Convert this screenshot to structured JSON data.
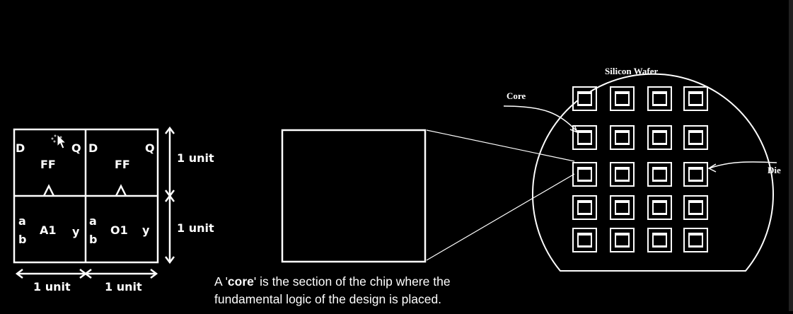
{
  "cell_grid": {
    "top_left": {
      "d": "D",
      "q": "Q",
      "name": "FF"
    },
    "top_right": {
      "d": "D",
      "q": "Q",
      "name": "FF"
    },
    "bottom_left": {
      "a": "a",
      "b": "b",
      "name": "A1",
      "y": "y"
    },
    "bottom_right": {
      "a": "a",
      "b": "b",
      "name": "O1",
      "y": "y"
    },
    "dim_top": "1 unit",
    "dim_bottom": "1 unit",
    "dim_left": "1 unit",
    "dim_right": "1 unit"
  },
  "wafer": {
    "title": "Silicon Wafer",
    "core_label": "Core",
    "die_label": "Die"
  },
  "caption": {
    "prefix": "A '",
    "term": "core",
    "suffix": "' is the section of the chip where the fundamental logic of the design is placed."
  }
}
